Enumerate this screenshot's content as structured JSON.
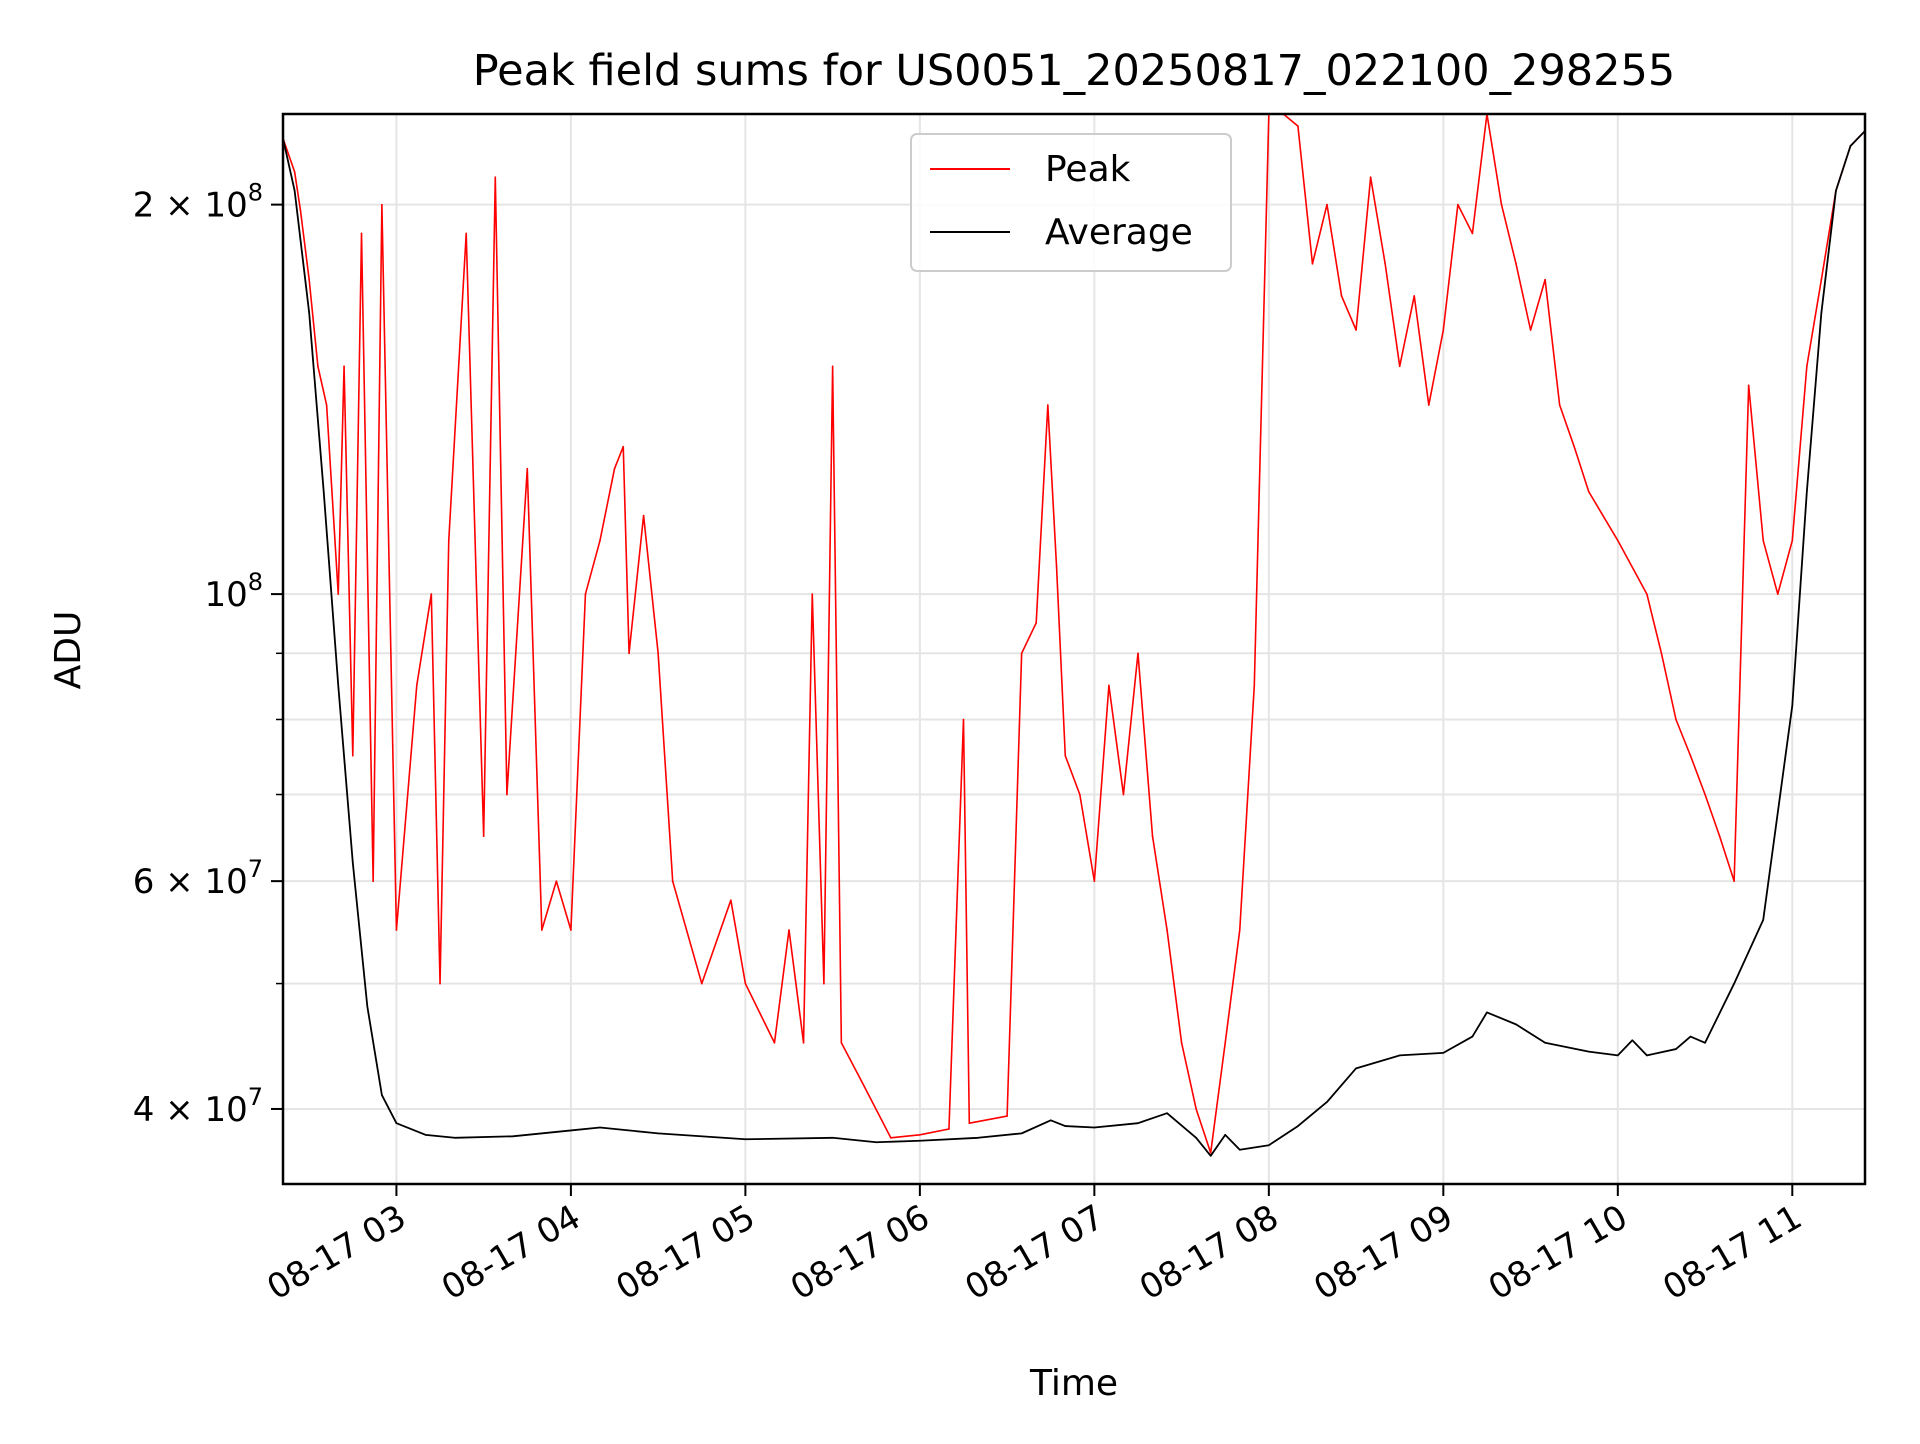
{
  "chart_data": {
    "type": "line",
    "title": "Peak field sums for US0051_20250817_022100_298255",
    "xlabel": "Time",
    "ylabel": "ADU",
    "yscale": "log",
    "grid": true,
    "legend_position": "top-center",
    "xlim": [
      "2025-08-17 02:21",
      "2025-08-17 11:25"
    ],
    "ylim": [
      35000000,
      235000000
    ],
    "x_ticks": [
      "08-17 03",
      "08-17 04",
      "08-17 05",
      "08-17 06",
      "08-17 07",
      "08-17 08",
      "08-17 09",
      "08-17 10",
      "08-17 11"
    ],
    "y_major_ticks": [
      {
        "value": 40000000,
        "label_base": "4 × 10",
        "label_exp": "7"
      },
      {
        "value": 60000000,
        "label_base": "6 × 10",
        "label_exp": "7"
      },
      {
        "value": 100000000,
        "label_base": "10",
        "label_exp": "8"
      },
      {
        "value": 200000000,
        "label_base": "2 × 10",
        "label_exp": "8"
      }
    ],
    "y_minor_ticks": [
      50000000,
      70000000,
      80000000,
      90000000
    ],
    "series": [
      {
        "name": "Average",
        "color": "#000000",
        "points": [
          [
            "2025-08-17 02:21",
            225000000
          ],
          [
            "2025-08-17 02:25",
            205000000
          ],
          [
            "2025-08-17 02:30",
            165000000
          ],
          [
            "2025-08-17 02:35",
            120000000
          ],
          [
            "2025-08-17 02:40",
            85000000
          ],
          [
            "2025-08-17 02:45",
            62000000
          ],
          [
            "2025-08-17 02:50",
            48000000
          ],
          [
            "2025-08-17 02:55",
            41000000
          ],
          [
            "2025-08-17 03:00",
            39000000
          ],
          [
            "2025-08-17 03:10",
            38200000
          ],
          [
            "2025-08-17 03:20",
            38000000
          ],
          [
            "2025-08-17 03:40",
            38100000
          ],
          [
            "2025-08-17 04:00",
            38500000
          ],
          [
            "2025-08-17 04:10",
            38700000
          ],
          [
            "2025-08-17 04:30",
            38300000
          ],
          [
            "2025-08-17 05:00",
            37900000
          ],
          [
            "2025-08-17 05:30",
            38000000
          ],
          [
            "2025-08-17 05:45",
            37700000
          ],
          [
            "2025-08-17 06:00",
            37800000
          ],
          [
            "2025-08-17 06:20",
            38000000
          ],
          [
            "2025-08-17 06:35",
            38300000
          ],
          [
            "2025-08-17 06:45",
            39200000
          ],
          [
            "2025-08-17 06:50",
            38800000
          ],
          [
            "2025-08-17 07:00",
            38700000
          ],
          [
            "2025-08-17 07:15",
            39000000
          ],
          [
            "2025-08-17 07:25",
            39700000
          ],
          [
            "2025-08-17 07:35",
            38000000
          ],
          [
            "2025-08-17 07:40",
            36800000
          ],
          [
            "2025-08-17 07:45",
            38200000
          ],
          [
            "2025-08-17 07:50",
            37200000
          ],
          [
            "2025-08-17 08:00",
            37500000
          ],
          [
            "2025-08-17 08:10",
            38800000
          ],
          [
            "2025-08-17 08:20",
            40500000
          ],
          [
            "2025-08-17 08:30",
            43000000
          ],
          [
            "2025-08-17 08:45",
            44000000
          ],
          [
            "2025-08-17 09:00",
            44200000
          ],
          [
            "2025-08-17 09:10",
            45500000
          ],
          [
            "2025-08-17 09:15",
            47500000
          ],
          [
            "2025-08-17 09:25",
            46500000
          ],
          [
            "2025-08-17 09:35",
            45000000
          ],
          [
            "2025-08-17 09:50",
            44300000
          ],
          [
            "2025-08-17 10:00",
            44000000
          ],
          [
            "2025-08-17 10:05",
            45200000
          ],
          [
            "2025-08-17 10:10",
            44000000
          ],
          [
            "2025-08-17 10:20",
            44500000
          ],
          [
            "2025-08-17 10:25",
            45500000
          ],
          [
            "2025-08-17 10:30",
            45000000
          ],
          [
            "2025-08-17 10:40",
            50000000
          ],
          [
            "2025-08-17 10:50",
            56000000
          ],
          [
            "2025-08-17 11:00",
            82000000
          ],
          [
            "2025-08-17 11:05",
            120000000
          ],
          [
            "2025-08-17 11:10",
            165000000
          ],
          [
            "2025-08-17 11:15",
            205000000
          ],
          [
            "2025-08-17 11:20",
            222000000
          ],
          [
            "2025-08-17 11:25",
            228000000
          ]
        ]
      },
      {
        "name": "Peak",
        "color": "#ff0000",
        "points": [
          [
            "2025-08-17 02:21",
            225000000
          ],
          [
            "2025-08-17 02:25",
            212000000
          ],
          [
            "2025-08-17 02:27",
            198000000
          ],
          [
            "2025-08-17 02:30",
            175000000
          ],
          [
            "2025-08-17 02:33",
            150000000
          ],
          [
            "2025-08-17 02:36",
            140000000
          ],
          [
            "2025-08-17 02:40",
            100000000
          ],
          [
            "2025-08-17 02:42",
            150000000
          ],
          [
            "2025-08-17 02:45",
            75000000
          ],
          [
            "2025-08-17 02:48",
            190000000
          ],
          [
            "2025-08-17 02:52",
            60000000
          ],
          [
            "2025-08-17 02:55",
            200000000
          ],
          [
            "2025-08-17 03:00",
            55000000
          ],
          [
            "2025-08-17 03:07",
            85000000
          ],
          [
            "2025-08-17 03:12",
            100000000
          ],
          [
            "2025-08-17 03:15",
            50000000
          ],
          [
            "2025-08-17 03:18",
            110000000
          ],
          [
            "2025-08-17 03:24",
            190000000
          ],
          [
            "2025-08-17 03:30",
            65000000
          ],
          [
            "2025-08-17 03:34",
            210000000
          ],
          [
            "2025-08-17 03:38",
            70000000
          ],
          [
            "2025-08-17 03:45",
            125000000
          ],
          [
            "2025-08-17 03:50",
            55000000
          ],
          [
            "2025-08-17 03:55",
            60000000
          ],
          [
            "2025-08-17 04:00",
            55000000
          ],
          [
            "2025-08-17 04:05",
            100000000
          ],
          [
            "2025-08-17 04:10",
            110000000
          ],
          [
            "2025-08-17 04:15",
            125000000
          ],
          [
            "2025-08-17 04:18",
            130000000
          ],
          [
            "2025-08-17 04:20",
            90000000
          ],
          [
            "2025-08-17 04:25",
            115000000
          ],
          [
            "2025-08-17 04:30",
            90000000
          ],
          [
            "2025-08-17 04:35",
            60000000
          ],
          [
            "2025-08-17 04:45",
            50000000
          ],
          [
            "2025-08-17 04:55",
            58000000
          ],
          [
            "2025-08-17 05:00",
            50000000
          ],
          [
            "2025-08-17 05:10",
            45000000
          ],
          [
            "2025-08-17 05:15",
            55000000
          ],
          [
            "2025-08-17 05:20",
            45000000
          ],
          [
            "2025-08-17 05:23",
            100000000
          ],
          [
            "2025-08-17 05:27",
            50000000
          ],
          [
            "2025-08-17 05:30",
            150000000
          ],
          [
            "2025-08-17 05:33",
            45000000
          ],
          [
            "2025-08-17 05:40",
            42000000
          ],
          [
            "2025-08-17 05:50",
            38000000
          ],
          [
            "2025-08-17 06:00",
            38200000
          ],
          [
            "2025-08-17 06:10",
            38600000
          ],
          [
            "2025-08-17 06:15",
            80000000
          ],
          [
            "2025-08-17 06:17",
            39000000
          ],
          [
            "2025-08-17 06:30",
            39500000
          ],
          [
            "2025-08-17 06:35",
            90000000
          ],
          [
            "2025-08-17 06:40",
            95000000
          ],
          [
            "2025-08-17 06:44",
            140000000
          ],
          [
            "2025-08-17 06:47",
            105000000
          ],
          [
            "2025-08-17 06:50",
            75000000
          ],
          [
            "2025-08-17 06:55",
            70000000
          ],
          [
            "2025-08-17 07:00",
            60000000
          ],
          [
            "2025-08-17 07:05",
            85000000
          ],
          [
            "2025-08-17 07:10",
            70000000
          ],
          [
            "2025-08-17 07:15",
            90000000
          ],
          [
            "2025-08-17 07:20",
            65000000
          ],
          [
            "2025-08-17 07:25",
            55000000
          ],
          [
            "2025-08-17 07:30",
            45000000
          ],
          [
            "2025-08-17 07:35",
            40000000
          ],
          [
            "2025-08-17 07:40",
            37000000
          ],
          [
            "2025-08-17 07:45",
            45000000
          ],
          [
            "2025-08-17 07:50",
            55000000
          ],
          [
            "2025-08-17 07:55",
            85000000
          ],
          [
            "2025-08-17 08:00",
            235000000
          ],
          [
            "2025-08-17 08:05",
            235000000
          ],
          [
            "2025-08-17 08:10",
            230000000
          ],
          [
            "2025-08-17 08:15",
            180000000
          ],
          [
            "2025-08-17 08:20",
            200000000
          ],
          [
            "2025-08-17 08:25",
            170000000
          ],
          [
            "2025-08-17 08:30",
            160000000
          ],
          [
            "2025-08-17 08:35",
            210000000
          ],
          [
            "2025-08-17 08:40",
            180000000
          ],
          [
            "2025-08-17 08:45",
            150000000
          ],
          [
            "2025-08-17 08:50",
            170000000
          ],
          [
            "2025-08-17 08:55",
            140000000
          ],
          [
            "2025-08-17 09:00",
            160000000
          ],
          [
            "2025-08-17 09:05",
            200000000
          ],
          [
            "2025-08-17 09:10",
            190000000
          ],
          [
            "2025-08-17 09:15",
            235000000
          ],
          [
            "2025-08-17 09:20",
            200000000
          ],
          [
            "2025-08-17 09:25",
            180000000
          ],
          [
            "2025-08-17 09:30",
            160000000
          ],
          [
            "2025-08-17 09:35",
            175000000
          ],
          [
            "2025-08-17 09:40",
            140000000
          ],
          [
            "2025-08-17 09:45",
            130000000
          ],
          [
            "2025-08-17 09:50",
            120000000
          ],
          [
            "2025-08-17 10:00",
            110000000
          ],
          [
            "2025-08-17 10:10",
            100000000
          ],
          [
            "2025-08-17 10:15",
            90000000
          ],
          [
            "2025-08-17 10:20",
            80000000
          ],
          [
            "2025-08-17 10:25",
            75000000
          ],
          [
            "2025-08-17 10:30",
            70000000
          ],
          [
            "2025-08-17 10:35",
            65000000
          ],
          [
            "2025-08-17 10:40",
            60000000
          ],
          [
            "2025-08-17 10:45",
            145000000
          ],
          [
            "2025-08-17 10:50",
            110000000
          ],
          [
            "2025-08-17 10:55",
            100000000
          ],
          [
            "2025-08-17 11:00",
            110000000
          ],
          [
            "2025-08-17 11:05",
            150000000
          ],
          [
            "2025-08-17 11:10",
            175000000
          ],
          [
            "2025-08-17 11:15",
            205000000
          ],
          [
            "2025-08-17 11:20",
            222000000
          ],
          [
            "2025-08-17 11:25",
            228000000
          ]
        ]
      }
    ]
  }
}
